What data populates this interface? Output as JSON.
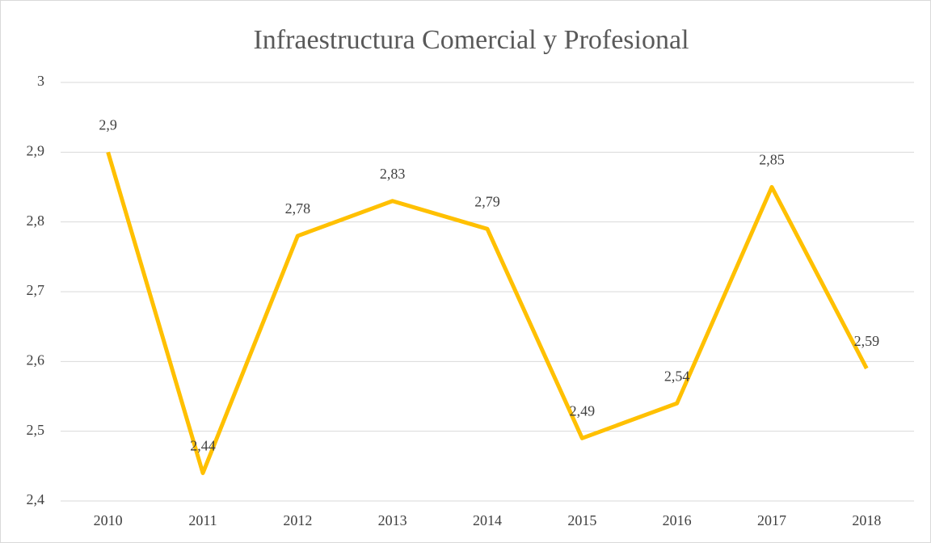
{
  "chart_data": {
    "type": "line",
    "title": "Infraestructura Comercial y Profesional",
    "categories": [
      "2010",
      "2011",
      "2012",
      "2013",
      "2014",
      "2015",
      "2016",
      "2017",
      "2018"
    ],
    "values": [
      2.9,
      2.44,
      2.78,
      2.83,
      2.79,
      2.49,
      2.54,
      2.85,
      2.59
    ],
    "value_labels": [
      "2,9",
      "2,44",
      "2,78",
      "2,83",
      "2,79",
      "2,49",
      "2,54",
      "2,85",
      "2,59"
    ],
    "color": "#ffc000",
    "ylim": [
      2.4,
      3
    ],
    "yticks": [
      {
        "value": 2.4,
        "label": "2,4"
      },
      {
        "value": 2.5,
        "label": "2,5"
      },
      {
        "value": 2.6,
        "label": "2,6"
      },
      {
        "value": 2.7,
        "label": "2,7"
      },
      {
        "value": 2.8,
        "label": "2,8"
      },
      {
        "value": 2.9,
        "label": "2,9"
      },
      3
    ],
    "grid": true
  }
}
